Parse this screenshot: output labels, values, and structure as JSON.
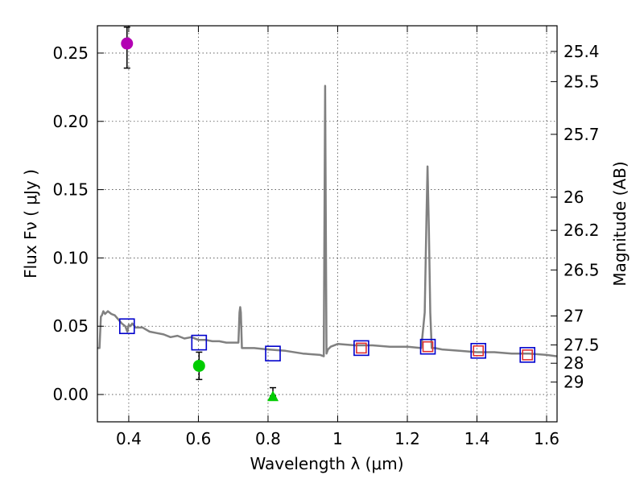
{
  "chart_data": {
    "type": "scatter",
    "title": "",
    "xlabel": "Wavelength  λ (μm)",
    "ylabel": "Flux  Fν  ( μJy )",
    "y2label": "Magnitude (AB)",
    "xlim": [
      0.31,
      1.63
    ],
    "ylim": [
      -0.02,
      0.27
    ],
    "grid": true,
    "x_ticks": [
      0.4,
      0.6,
      0.8,
      1.0,
      1.2,
      1.4,
      1.6
    ],
    "x_tick_labels": [
      "0.4",
      "0.6",
      "0.8",
      "1",
      "1.2",
      "1.4",
      "1.6"
    ],
    "y_ticks": [
      0.0,
      0.05,
      0.1,
      0.15,
      0.2,
      0.25
    ],
    "y_tick_labels": [
      "0.00",
      "0.05",
      "0.10",
      "0.15",
      "0.20",
      "0.25"
    ],
    "mag_ticks": [
      {
        "label": "25.4",
        "flux": 0.2512
      },
      {
        "label": "25.5",
        "flux": 0.2291
      },
      {
        "label": "25.7",
        "flux": 0.1905
      },
      {
        "label": "26",
        "flux": 0.1445
      },
      {
        "label": "26.2",
        "flux": 0.1202
      },
      {
        "label": "26.5",
        "flux": 0.0912
      },
      {
        "label": "27",
        "flux": 0.0575
      },
      {
        "label": "27.5",
        "flux": 0.0363
      },
      {
        "label": "28",
        "flux": 0.0229
      },
      {
        "label": "29",
        "flux": 0.0091
      }
    ],
    "sed_model": {
      "name": "model SED",
      "color": "#808080",
      "x": [
        0.31,
        0.316,
        0.32,
        0.323,
        0.327,
        0.332,
        0.34,
        0.35,
        0.36,
        0.37,
        0.38,
        0.39,
        0.396,
        0.4,
        0.405,
        0.41,
        0.42,
        0.44,
        0.46,
        0.48,
        0.5,
        0.52,
        0.54,
        0.56,
        0.58,
        0.6,
        0.62,
        0.64,
        0.66,
        0.68,
        0.7,
        0.715,
        0.718,
        0.72,
        0.722,
        0.725,
        0.74,
        0.76,
        0.8,
        0.85,
        0.9,
        0.95,
        0.96,
        0.964,
        0.966,
        0.968,
        0.972,
        0.98,
        1.0,
        1.05,
        1.1,
        1.15,
        1.2,
        1.24,
        1.25,
        1.255,
        1.258,
        1.262,
        1.266,
        1.27,
        1.28,
        1.3,
        1.35,
        1.4,
        1.45,
        1.5,
        1.55,
        1.6,
        1.63
      ],
      "y": [
        0.034,
        0.034,
        0.057,
        0.058,
        0.061,
        0.059,
        0.061,
        0.059,
        0.058,
        0.055,
        0.052,
        0.05,
        0.046,
        0.051,
        0.05,
        0.052,
        0.049,
        0.049,
        0.046,
        0.045,
        0.044,
        0.042,
        0.043,
        0.041,
        0.042,
        0.04,
        0.04,
        0.039,
        0.039,
        0.038,
        0.038,
        0.038,
        0.06,
        0.064,
        0.06,
        0.034,
        0.034,
        0.034,
        0.033,
        0.032,
        0.03,
        0.029,
        0.028,
        0.226,
        0.12,
        0.03,
        0.033,
        0.035,
        0.037,
        0.036,
        0.036,
        0.035,
        0.035,
        0.034,
        0.06,
        0.13,
        0.167,
        0.12,
        0.06,
        0.034,
        0.034,
        0.033,
        0.032,
        0.031,
        0.031,
        0.03,
        0.03,
        0.029,
        0.028
      ]
    },
    "series": [
      {
        "name": "observed (magenta)",
        "marker": "circle",
        "color": "#b300b3",
        "points": [
          {
            "x": 0.395,
            "y": 0.257,
            "yerr_low": 0.018,
            "yerr_high": 0.012
          }
        ]
      },
      {
        "name": "observed (green circle)",
        "marker": "circle",
        "color": "#00cc00",
        "points": [
          {
            "x": 0.602,
            "y": 0.021,
            "yerr_low": 0.01,
            "yerr_high": 0.01
          }
        ]
      },
      {
        "name": "upper limit (green triangle)",
        "marker": "triangle",
        "color": "#00cc00",
        "points": [
          {
            "x": 0.814,
            "y": -0.001,
            "yerr_low": 0.0,
            "yerr_high": 0.006
          }
        ]
      },
      {
        "name": "model photometry (blue squares)",
        "marker": "square-open",
        "color": "#0000cc",
        "points": [
          {
            "x": 0.395,
            "y": 0.05
          },
          {
            "x": 0.602,
            "y": 0.038
          },
          {
            "x": 0.814,
            "y": 0.03
          },
          {
            "x": 1.068,
            "y": 0.034
          },
          {
            "x": 1.259,
            "y": 0.035
          },
          {
            "x": 1.404,
            "y": 0.032
          },
          {
            "x": 1.545,
            "y": 0.029
          }
        ]
      },
      {
        "name": "observed (red squares)",
        "marker": "square-open",
        "color": "#e03030",
        "points": [
          {
            "x": 1.068,
            "y": 0.034
          },
          {
            "x": 1.259,
            "y": 0.035
          },
          {
            "x": 1.404,
            "y": 0.032
          },
          {
            "x": 1.545,
            "y": 0.029
          }
        ]
      }
    ]
  }
}
